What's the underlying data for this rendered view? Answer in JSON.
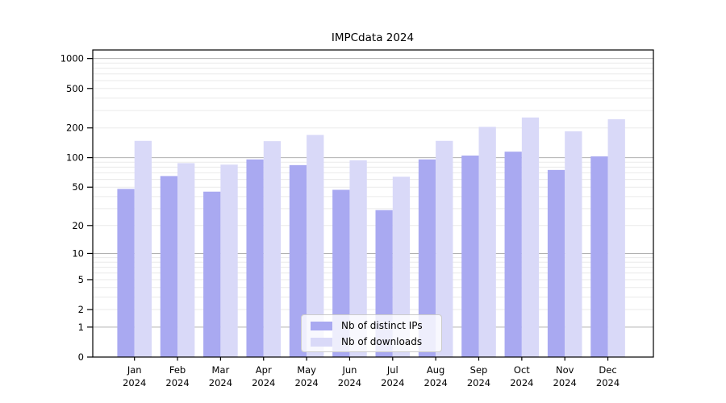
{
  "chart_data": {
    "type": "bar",
    "title": "IMPCdata 2024",
    "categories": [
      "Jan",
      "Feb",
      "Mar",
      "Apr",
      "May",
      "Jun",
      "Jul",
      "Aug",
      "Sep",
      "Oct",
      "Nov",
      "Dec"
    ],
    "year_label": "2024",
    "series": [
      {
        "name": "Nb of distinct IPs",
        "color": "#a9a9f1",
        "values": [
          48,
          65,
          45,
          96,
          84,
          47,
          29,
          96,
          105,
          115,
          75,
          103
        ]
      },
      {
        "name": "Nb of downloads",
        "color": "#d9d9f8",
        "values": [
          148,
          88,
          85,
          147,
          170,
          94,
          64,
          148,
          205,
          255,
          185,
          245
        ]
      }
    ],
    "yticks": [
      0,
      1,
      2,
      5,
      10,
      20,
      50,
      100,
      200,
      500,
      1000
    ],
    "ytick_labels": [
      "0",
      "1",
      "2",
      "5",
      "10",
      "20",
      "50",
      "100",
      "200",
      "500",
      "1000"
    ],
    "yscale": "log1p",
    "ylim": [
      0,
      1220
    ],
    "xlabel": "",
    "ylabel": "",
    "grid": "horizontal, major and minor",
    "legend_position": "lower center",
    "colors": {
      "background": "#ffffff",
      "major_grid": "#b1b1b1",
      "minor_grid": "#eaeaea",
      "spine": "#000000",
      "text": "#000000"
    }
  }
}
